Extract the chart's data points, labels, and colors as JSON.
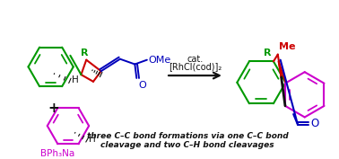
{
  "bg_color": "#ffffff",
  "green": "#009900",
  "red": "#cc0000",
  "blue": "#0000bb",
  "magenta": "#cc00cc",
  "black": "#111111",
  "bottom_text_line1": "three C–C bond formations via one C–C bond",
  "bottom_text_line2": "cleavage and two C–H bond cleavages",
  "cat_text1": "cat.",
  "cat_text2": "[RhCl(cod)]₂",
  "plus_sign": "+",
  "BPh3Na_label": "BPh₃Na",
  "OMe_label": "OMe",
  "R_label": "R",
  "Me_label": "Me",
  "H_label": "H",
  "O_label": "O"
}
